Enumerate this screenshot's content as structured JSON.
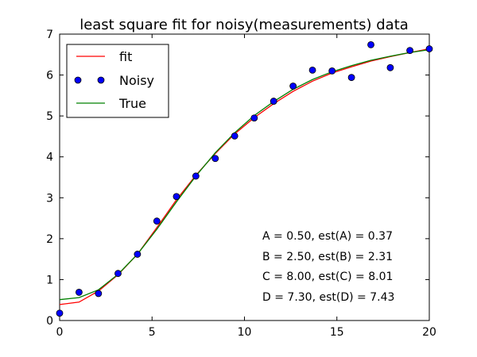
{
  "chart_data": {
    "type": "line",
    "title": "least square fit for noisy(measurements) data",
    "xlabel": "",
    "ylabel": "",
    "xlim": [
      0,
      20
    ],
    "ylim": [
      0,
      7
    ],
    "xticks": [
      0,
      5,
      10,
      15,
      20
    ],
    "yticks": [
      0,
      1,
      2,
      3,
      4,
      5,
      6,
      7
    ],
    "grid": false,
    "legend_placement": "top-left",
    "x": [
      0,
      1.05,
      2.1,
      3.16,
      4.21,
      5.26,
      6.32,
      7.37,
      8.42,
      9.47,
      10.53,
      11.58,
      12.63,
      13.68,
      14.74,
      15.79,
      16.84,
      17.89,
      18.95,
      20
    ],
    "series": [
      {
        "name": "fit",
        "kind": "line",
        "color": "#ff0000",
        "values": [
          0.39,
          0.45,
          0.72,
          1.12,
          1.62,
          2.27,
          2.95,
          3.55,
          4.08,
          4.56,
          4.96,
          5.3,
          5.6,
          5.85,
          6.05,
          6.2,
          6.34,
          6.45,
          6.55,
          6.64
        ]
      },
      {
        "name": "Noisy",
        "kind": "scatter",
        "color": "#0000ff",
        "values": [
          0.18,
          0.69,
          0.66,
          1.15,
          1.62,
          2.43,
          3.03,
          3.53,
          3.96,
          4.51,
          4.95,
          5.36,
          5.73,
          6.12,
          6.1,
          5.94,
          6.74,
          6.18,
          6.6,
          6.64
        ]
      },
      {
        "name": "True",
        "kind": "line",
        "color": "#008000",
        "values": [
          0.51,
          0.56,
          0.75,
          1.13,
          1.62,
          2.23,
          2.9,
          3.53,
          4.1,
          4.59,
          5.01,
          5.35,
          5.65,
          5.89,
          6.08,
          6.23,
          6.36,
          6.46,
          6.55,
          6.62
        ]
      }
    ],
    "annotations": [
      "A = 0.50, est(A) = 0.37",
      "B = 2.50, est(B) = 2.31",
      "C = 8.00, est(C) = 8.01",
      "D = 7.30, est(D) = 7.43"
    ]
  }
}
